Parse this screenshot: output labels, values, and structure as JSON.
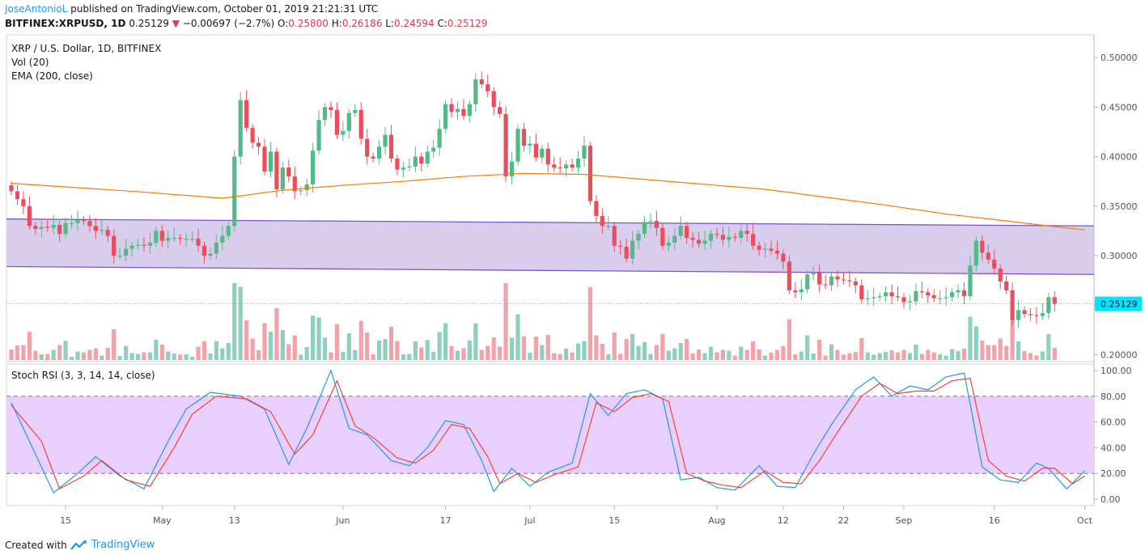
{
  "header": {
    "author": "JoseAntonioL",
    "published_text": "published on TradingView.com, October 01, 2019 21:21:31 UTC",
    "symbol": "BITFINEX:XRPUSD, 1D",
    "last": "0.25129",
    "change_arrow": "▼",
    "change": "−0.00697 (−2.7%)",
    "o_label": "O:",
    "o": "0.25800",
    "h_label": "H:",
    "h": "0.26186",
    "l_label": "L:",
    "l": "0.24594",
    "c_label": "C:",
    "c": "0.25129"
  },
  "footer": {
    "created_with": "Created with",
    "brand": "TradingView"
  },
  "colors": {
    "up": "#53b987",
    "down": "#eb4d5c",
    "up_vol": "#90cfc0",
    "down_vol": "#f2a2a8",
    "ema": "#f57c00",
    "channel_fill": "#d1c4e9",
    "channel_line": "#7e57c2",
    "rsi_fill": "#e9cffc",
    "k": "#2196f3",
    "d": "#f44336"
  },
  "chart_data": [
    {
      "type": "candlestick",
      "title": "XRP / U.S. Dollar, 1D, BITFINEX",
      "legend": [
        "Vol (20)",
        "EMA (200, close)"
      ],
      "y_ticks": [
        0.2,
        0.25,
        0.3,
        0.35,
        0.4,
        0.45,
        0.5
      ],
      "y_tick_labels": [
        "0.20000",
        "0.25000",
        "0.30000",
        "0.35000",
        "0.40000",
        "0.45000",
        "0.50000"
      ],
      "ylim": [
        0.193,
        0.523
      ],
      "last_price_label": "0.25129",
      "last_price": 0.25129,
      "x_ticks": [
        {
          "i": 9,
          "label": "15"
        },
        {
          "i": 25,
          "label": "May"
        },
        {
          "i": 37,
          "label": "13"
        },
        {
          "i": 55,
          "label": "Jun"
        },
        {
          "i": 72,
          "label": "17"
        },
        {
          "i": 86,
          "label": "Jul"
        },
        {
          "i": 100,
          "label": "15"
        },
        {
          "i": 117,
          "label": "Aug"
        },
        {
          "i": 128,
          "label": "12"
        },
        {
          "i": 138,
          "label": "22"
        },
        {
          "i": 148,
          "label": "Sep"
        },
        {
          "i": 163,
          "label": "16"
        },
        {
          "i": 178,
          "label": "Oct"
        }
      ],
      "closes": [
        0.365,
        0.357,
        0.35,
        0.33,
        0.327,
        0.329,
        0.328,
        0.331,
        0.322,
        0.333,
        0.333,
        0.336,
        0.335,
        0.33,
        0.325,
        0.326,
        0.32,
        0.3,
        0.3,
        0.307,
        0.31,
        0.311,
        0.31,
        0.313,
        0.325,
        0.315,
        0.318,
        0.318,
        0.317,
        0.317,
        0.317,
        0.31,
        0.3,
        0.302,
        0.313,
        0.32,
        0.33,
        0.4,
        0.457,
        0.429,
        0.414,
        0.41,
        0.385,
        0.405,
        0.367,
        0.389,
        0.38,
        0.365,
        0.366,
        0.372,
        0.406,
        0.437,
        0.45,
        0.447,
        0.422,
        0.426,
        0.444,
        0.447,
        0.418,
        0.4,
        0.398,
        0.41,
        0.422,
        0.398,
        0.387,
        0.389,
        0.39,
        0.4,
        0.393,
        0.405,
        0.409,
        0.428,
        0.453,
        0.445,
        0.448,
        0.441,
        0.453,
        0.478,
        0.473,
        0.466,
        0.45,
        0.443,
        0.38,
        0.395,
        0.428,
        0.411,
        0.413,
        0.399,
        0.408,
        0.392,
        0.389,
        0.388,
        0.392,
        0.389,
        0.398,
        0.411,
        0.355,
        0.34,
        0.33,
        0.33,
        0.31,
        0.309,
        0.297,
        0.315,
        0.322,
        0.334,
        0.335,
        0.328,
        0.31,
        0.313,
        0.32,
        0.33,
        0.318,
        0.316,
        0.312,
        0.315,
        0.322,
        0.321,
        0.316,
        0.319,
        0.318,
        0.325,
        0.322,
        0.31,
        0.306,
        0.307,
        0.305,
        0.302,
        0.294,
        0.265,
        0.263,
        0.266,
        0.281,
        0.283,
        0.271,
        0.27,
        0.279,
        0.276,
        0.275,
        0.274,
        0.27,
        0.256,
        0.257,
        0.258,
        0.259,
        0.263,
        0.259,
        0.258,
        0.253,
        0.254,
        0.264,
        0.263,
        0.26,
        0.257,
        0.257,
        0.258,
        0.263,
        0.265,
        0.259,
        0.29,
        0.315,
        0.303,
        0.296,
        0.287,
        0.274,
        0.265,
        0.235,
        0.245,
        0.241,
        0.24,
        0.239,
        0.242,
        0.258,
        0.25129
      ],
      "ema": [
        {
          "i": 0,
          "v": 0.373
        },
        {
          "i": 20,
          "v": 0.365
        },
        {
          "i": 35,
          "v": 0.358
        },
        {
          "i": 45,
          "v": 0.366
        },
        {
          "i": 55,
          "v": 0.371
        },
        {
          "i": 65,
          "v": 0.375
        },
        {
          "i": 75,
          "v": 0.38
        },
        {
          "i": 85,
          "v": 0.383
        },
        {
          "i": 95,
          "v": 0.382
        },
        {
          "i": 105,
          "v": 0.377
        },
        {
          "i": 115,
          "v": 0.372
        },
        {
          "i": 125,
          "v": 0.367
        },
        {
          "i": 135,
          "v": 0.359
        },
        {
          "i": 145,
          "v": 0.351
        },
        {
          "i": 155,
          "v": 0.342
        },
        {
          "i": 165,
          "v": 0.335
        },
        {
          "i": 172,
          "v": 0.33
        },
        {
          "i": 178,
          "v": 0.326
        }
      ],
      "channel": {
        "upper": [
          0.337,
          0.33
        ],
        "lower": [
          0.289,
          0.281
        ]
      }
    },
    {
      "type": "line",
      "title": "Stoch RSI (3, 3, 14, 14, close)",
      "ylim": [
        -5,
        105
      ],
      "y_ticks": [
        0,
        20,
        40,
        60,
        80,
        100
      ],
      "y_tick_labels": [
        "0.00",
        "20.00",
        "40.00",
        "60.00",
        "80.00",
        "100.00"
      ],
      "band": [
        20,
        80
      ],
      "series": [
        {
          "name": "K",
          "points": [
            {
              "i": 0,
              "v": 75
            },
            {
              "i": 4,
              "v": 35
            },
            {
              "i": 7,
              "v": 5
            },
            {
              "i": 11,
              "v": 20
            },
            {
              "i": 14,
              "v": 33
            },
            {
              "i": 18,
              "v": 18
            },
            {
              "i": 22,
              "v": 8
            },
            {
              "i": 26,
              "v": 45
            },
            {
              "i": 29,
              "v": 70
            },
            {
              "i": 33,
              "v": 83
            },
            {
              "i": 38,
              "v": 80
            },
            {
              "i": 42,
              "v": 70
            },
            {
              "i": 46,
              "v": 27
            },
            {
              "i": 49,
              "v": 55
            },
            {
              "i": 53,
              "v": 100
            },
            {
              "i": 56,
              "v": 55
            },
            {
              "i": 59,
              "v": 50
            },
            {
              "i": 63,
              "v": 30
            },
            {
              "i": 66,
              "v": 26
            },
            {
              "i": 69,
              "v": 40
            },
            {
              "i": 72,
              "v": 61
            },
            {
              "i": 75,
              "v": 58
            },
            {
              "i": 78,
              "v": 30
            },
            {
              "i": 80,
              "v": 6
            },
            {
              "i": 83,
              "v": 24
            },
            {
              "i": 86,
              "v": 10
            },
            {
              "i": 89,
              "v": 21
            },
            {
              "i": 93,
              "v": 28
            },
            {
              "i": 96,
              "v": 82
            },
            {
              "i": 99,
              "v": 65
            },
            {
              "i": 102,
              "v": 82
            },
            {
              "i": 105,
              "v": 85
            },
            {
              "i": 108,
              "v": 78
            },
            {
              "i": 111,
              "v": 15
            },
            {
              "i": 114,
              "v": 17
            },
            {
              "i": 117,
              "v": 9
            },
            {
              "i": 120,
              "v": 7
            },
            {
              "i": 124,
              "v": 26
            },
            {
              "i": 127,
              "v": 10
            },
            {
              "i": 130,
              "v": 9
            },
            {
              "i": 133,
              "v": 35
            },
            {
              "i": 136,
              "v": 58
            },
            {
              "i": 140,
              "v": 85
            },
            {
              "i": 143,
              "v": 95
            },
            {
              "i": 146,
              "v": 80
            },
            {
              "i": 149,
              "v": 88
            },
            {
              "i": 152,
              "v": 85
            },
            {
              "i": 155,
              "v": 95
            },
            {
              "i": 158,
              "v": 98
            },
            {
              "i": 161,
              "v": 25
            },
            {
              "i": 164,
              "v": 15
            },
            {
              "i": 167,
              "v": 13
            },
            {
              "i": 170,
              "v": 28
            },
            {
              "i": 172,
              "v": 24
            },
            {
              "i": 175,
              "v": 8
            },
            {
              "i": 178,
              "v": 22
            }
          ]
        },
        {
          "name": "D",
          "points": [
            {
              "i": 0,
              "v": 73
            },
            {
              "i": 5,
              "v": 45
            },
            {
              "i": 8,
              "v": 8
            },
            {
              "i": 12,
              "v": 18
            },
            {
              "i": 15,
              "v": 30
            },
            {
              "i": 19,
              "v": 15
            },
            {
              "i": 23,
              "v": 10
            },
            {
              "i": 27,
              "v": 40
            },
            {
              "i": 30,
              "v": 66
            },
            {
              "i": 34,
              "v": 80
            },
            {
              "i": 39,
              "v": 78
            },
            {
              "i": 43,
              "v": 68
            },
            {
              "i": 47,
              "v": 35
            },
            {
              "i": 50,
              "v": 50
            },
            {
              "i": 54,
              "v": 92
            },
            {
              "i": 57,
              "v": 57
            },
            {
              "i": 60,
              "v": 48
            },
            {
              "i": 64,
              "v": 32
            },
            {
              "i": 67,
              "v": 28
            },
            {
              "i": 70,
              "v": 38
            },
            {
              "i": 73,
              "v": 58
            },
            {
              "i": 76,
              "v": 55
            },
            {
              "i": 79,
              "v": 33
            },
            {
              "i": 81,
              "v": 12
            },
            {
              "i": 84,
              "v": 20
            },
            {
              "i": 87,
              "v": 13
            },
            {
              "i": 90,
              "v": 19
            },
            {
              "i": 94,
              "v": 25
            },
            {
              "i": 97,
              "v": 75
            },
            {
              "i": 100,
              "v": 68
            },
            {
              "i": 103,
              "v": 79
            },
            {
              "i": 106,
              "v": 82
            },
            {
              "i": 109,
              "v": 76
            },
            {
              "i": 112,
              "v": 20
            },
            {
              "i": 115,
              "v": 14
            },
            {
              "i": 118,
              "v": 11
            },
            {
              "i": 121,
              "v": 9
            },
            {
              "i": 125,
              "v": 22
            },
            {
              "i": 128,
              "v": 13
            },
            {
              "i": 131,
              "v": 12
            },
            {
              "i": 134,
              "v": 30
            },
            {
              "i": 137,
              "v": 52
            },
            {
              "i": 141,
              "v": 80
            },
            {
              "i": 144,
              "v": 90
            },
            {
              "i": 147,
              "v": 82
            },
            {
              "i": 150,
              "v": 84
            },
            {
              "i": 153,
              "v": 84
            },
            {
              "i": 156,
              "v": 92
            },
            {
              "i": 159,
              "v": 94
            },
            {
              "i": 162,
              "v": 30
            },
            {
              "i": 165,
              "v": 18
            },
            {
              "i": 168,
              "v": 14
            },
            {
              "i": 171,
              "v": 24
            },
            {
              "i": 173,
              "v": 24
            },
            {
              "i": 176,
              "v": 12
            },
            {
              "i": 178,
              "v": 18
            }
          ]
        }
      ]
    }
  ]
}
